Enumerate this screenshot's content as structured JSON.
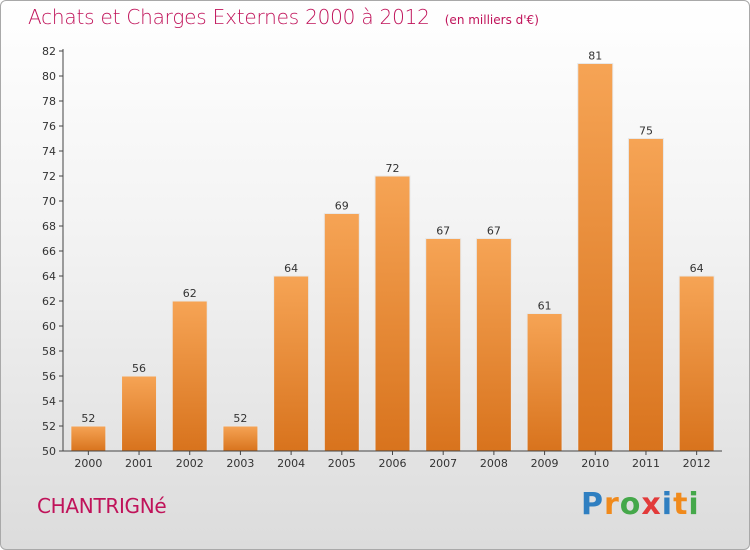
{
  "title": "Achats et Charges Externes 2000 à 2012",
  "unit_note": "(en milliers d'€)",
  "commune": "CHANTRIGNé",
  "logo": {
    "text": "Proxiti",
    "letters": [
      {
        "ch": "P",
        "color": "#2f7fc1"
      },
      {
        "ch": "r",
        "color": "#f08a1c"
      },
      {
        "ch": "o",
        "color": "#45a84a"
      },
      {
        "ch": "x",
        "color": "#e23a3a"
      },
      {
        "ch": "i",
        "color": "#2f7fc1"
      },
      {
        "ch": "t",
        "color": "#f08a1c"
      },
      {
        "ch": "i",
        "color": "#45a84a"
      }
    ]
  },
  "colors": {
    "bar_top": "#f6a455",
    "bar_bottom": "#d8731d",
    "title": "#c0135a",
    "axis": "#444444",
    "grid": "#d0d0d0"
  },
  "chart_data": {
    "type": "bar",
    "title": "Achats et Charges Externes 2000 à 2012",
    "subtitle": "(en milliers d'€)",
    "xlabel": "",
    "ylabel": "",
    "categories": [
      "2000",
      "2001",
      "2002",
      "2003",
      "2004",
      "2005",
      "2006",
      "2007",
      "2008",
      "2009",
      "2010",
      "2011",
      "2012"
    ],
    "values": [
      52,
      56,
      62,
      52,
      64,
      69,
      72,
      67,
      67,
      61,
      81,
      75,
      64
    ],
    "ylim": [
      50,
      82
    ],
    "yticks": [
      50,
      52,
      54,
      56,
      58,
      60,
      62,
      64,
      66,
      68,
      70,
      72,
      74,
      76,
      78,
      80,
      82
    ],
    "grid": false,
    "data_labels": true
  }
}
